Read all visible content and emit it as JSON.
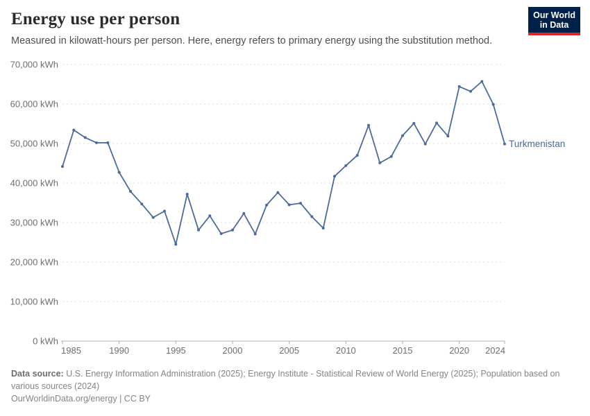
{
  "header": {
    "title": "Energy use per person",
    "subtitle": "Measured in kilowatt-hours per person. Here, energy refers to primary energy using the substitution method.",
    "logo": {
      "line1": "Our World",
      "line2": "in Data"
    }
  },
  "chart_data": {
    "type": "line",
    "title": "Energy use per person",
    "entity": "Turkmenistan",
    "unit": "kWh",
    "x": [
      1985,
      1986,
      1987,
      1988,
      1989,
      1990,
      1991,
      1992,
      1993,
      1994,
      1995,
      1996,
      1997,
      1998,
      1999,
      2000,
      2001,
      2002,
      2003,
      2004,
      2005,
      2006,
      2007,
      2008,
      2009,
      2010,
      2011,
      2012,
      2013,
      2014,
      2015,
      2016,
      2017,
      2018,
      2019,
      2020,
      2021,
      2022,
      2023,
      2024
    ],
    "values": [
      44200,
      53400,
      51500,
      50200,
      50200,
      42700,
      37900,
      34700,
      31300,
      32900,
      24500,
      37200,
      28100,
      31700,
      27200,
      28100,
      32300,
      27100,
      34400,
      37600,
      34500,
      34900,
      31500,
      28600,
      41700,
      44400,
      47000,
      54600,
      45100,
      46700,
      52000,
      55100,
      49900,
      55200,
      51900,
      64400,
      63200,
      65700,
      59900,
      49900
    ],
    "ylim": [
      0,
      70000
    ],
    "yticks": [
      0,
      10000,
      20000,
      30000,
      40000,
      50000,
      60000,
      70000
    ],
    "ytick_suffix": " kWh",
    "xticks": [
      1985,
      1990,
      1995,
      2000,
      2005,
      2010,
      2015,
      2020,
      2024
    ],
    "grid": "horizontal-dashed",
    "legend_position": "right-of-line",
    "line_color": "#4c6a9c"
  },
  "footer": {
    "source_label": "Data source:",
    "source_text": " U.S. Energy Information Administration (2025); Energy Institute - Statistical Review of World Energy (2025); Population based on various sources (2024)",
    "license": "OurWorldinData.org/energy | CC BY"
  },
  "colors": {
    "line": "#4c6a9c",
    "grid": "#dcdcdc",
    "axis": "#b0b0b0",
    "tick_text": "#6e6e6e",
    "logo_bg": "#002147",
    "logo_accent": "#dc2828"
  }
}
